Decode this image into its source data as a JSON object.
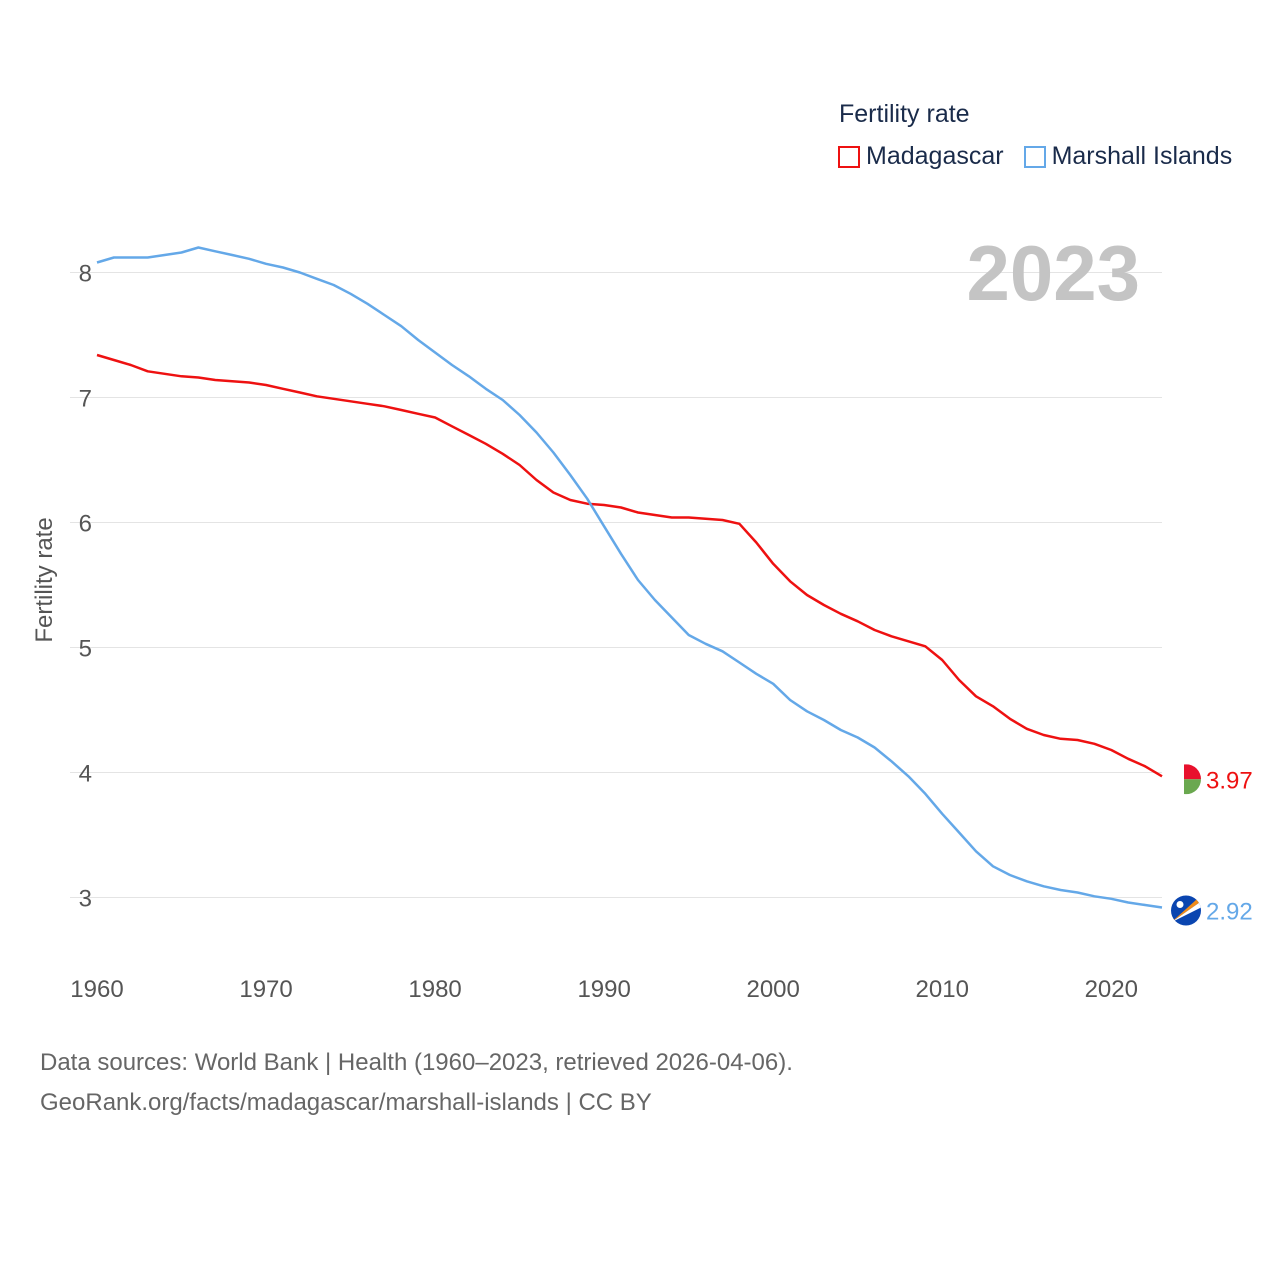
{
  "legend": {
    "title": "Fertility rate",
    "items": [
      {
        "label": "Madagascar",
        "color": "#ee1111"
      },
      {
        "label": "Marshall Islands",
        "color": "#64a8e8"
      }
    ]
  },
  "footer": {
    "line1": "Data sources: World Bank | Health (1960–2023, retrieved 2026-04-06).",
    "line2": "GeoRank.org/facts/madagascar/marshall-islands | CC BY"
  },
  "chart_data": {
    "type": "line",
    "title": "",
    "year_label": "2023",
    "xlabel": "",
    "ylabel": "Fertility rate",
    "xlim": [
      1960,
      2023
    ],
    "ylim": [
      2.5,
      8.5
    ],
    "x_ticks": [
      "1960",
      "1970",
      "1980",
      "1990",
      "2000",
      "2010",
      "2020"
    ],
    "y_ticks": [
      "3",
      "4",
      "5",
      "6",
      "7",
      "8"
    ],
    "grid": true,
    "legend_position": "top-right",
    "x": [
      1960,
      1961,
      1962,
      1963,
      1964,
      1965,
      1966,
      1967,
      1968,
      1969,
      1970,
      1971,
      1972,
      1973,
      1974,
      1975,
      1976,
      1977,
      1978,
      1979,
      1980,
      1981,
      1982,
      1983,
      1984,
      1985,
      1986,
      1987,
      1988,
      1989,
      1990,
      1991,
      1992,
      1993,
      1994,
      1995,
      1996,
      1997,
      1998,
      1999,
      2000,
      2001,
      2002,
      2003,
      2004,
      2005,
      2006,
      2007,
      2008,
      2009,
      2010,
      2011,
      2012,
      2013,
      2014,
      2015,
      2016,
      2017,
      2018,
      2019,
      2020,
      2021,
      2022,
      2023
    ],
    "series": [
      {
        "name": "Madagascar",
        "color": "#ee1111",
        "end_label": "3.97",
        "flag": "madagascar-flag",
        "values": [
          7.34,
          7.3,
          7.26,
          7.21,
          7.19,
          7.17,
          7.16,
          7.14,
          7.13,
          7.12,
          7.1,
          7.07,
          7.04,
          7.01,
          6.99,
          6.97,
          6.95,
          6.93,
          6.9,
          6.87,
          6.84,
          6.77,
          6.7,
          6.63,
          6.55,
          6.46,
          6.34,
          6.24,
          6.18,
          6.15,
          6.14,
          6.12,
          6.08,
          6.06,
          6.04,
          6.04,
          6.03,
          6.02,
          5.99,
          5.84,
          5.67,
          5.53,
          5.42,
          5.34,
          5.27,
          5.21,
          5.14,
          5.09,
          5.05,
          5.01,
          4.9,
          4.74,
          4.61,
          4.53,
          4.43,
          4.35,
          4.3,
          4.27,
          4.26,
          4.23,
          4.18,
          4.11,
          4.05,
          3.97
        ]
      },
      {
        "name": "Marshall Islands",
        "color": "#64a8e8",
        "end_label": "2.92",
        "flag": "marshall-islands-flag",
        "values": [
          8.08,
          8.12,
          8.12,
          8.12,
          8.14,
          8.16,
          8.2,
          8.17,
          8.14,
          8.11,
          8.07,
          8.04,
          8.0,
          7.95,
          7.9,
          7.83,
          7.75,
          7.66,
          7.57,
          7.46,
          7.36,
          7.26,
          7.17,
          7.07,
          6.98,
          6.86,
          6.72,
          6.56,
          6.38,
          6.19,
          5.97,
          5.75,
          5.54,
          5.38,
          5.24,
          5.1,
          5.03,
          4.97,
          4.88,
          4.79,
          4.71,
          4.58,
          4.49,
          4.42,
          4.34,
          4.28,
          4.2,
          4.09,
          3.97,
          3.83,
          3.67,
          3.52,
          3.37,
          3.25,
          3.18,
          3.13,
          3.09,
          3.06,
          3.04,
          3.01,
          2.99,
          2.96,
          2.94,
          2.92
        ]
      }
    ]
  }
}
